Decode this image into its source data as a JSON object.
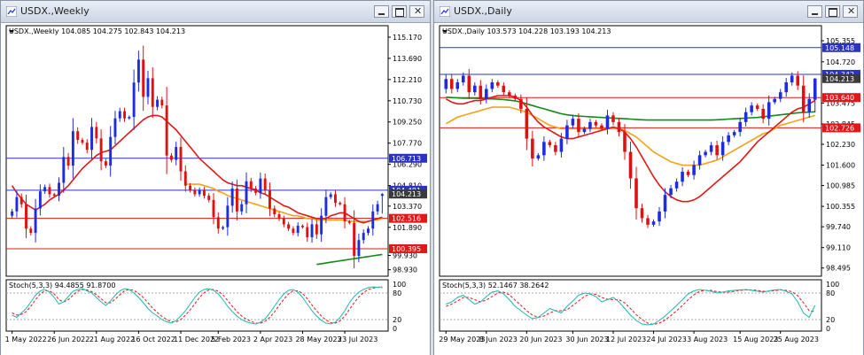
{
  "colors": {
    "bull": "#1c2ce0",
    "bear": "#e01010",
    "ma_red": "#e01818",
    "ma_orange": "#f4a21a",
    "ma_green": "#138a18",
    "stoch_main": "#20b6b0",
    "stoch_signal": "#e01818"
  },
  "windows": [
    {
      "title": "USDX.,Weekly",
      "info": "USDX.,Weekly  104.085 104.275 102.843 104.213",
      "stoch_label": "Stoch(5,3,3) 94.4855 91.8700",
      "yticks": [
        "115.170",
        "113.690",
        "112.210",
        "110.730",
        "109.250",
        "107.770",
        "106.290",
        "104.810",
        "103.370",
        "101.890",
        "99.930",
        "98.930"
      ],
      "stoch_ticks": [
        "100",
        "80",
        "20",
        "0"
      ],
      "xticks": [
        "1 May 2022",
        "26 Jun 2022",
        "21 Aug 2022",
        "16 Oct 2022",
        "11 Dec 2022",
        "5 Feb 2023",
        "2 Apr 2023",
        "28 May 2023",
        "23 Jul 2023"
      ],
      "price_tags": [
        "106.713",
        "104.481",
        "104.213",
        "102.516",
        "100.395"
      ]
    },
    {
      "title": "USDX.,Daily",
      "info": "USDX.,Daily  103.573 104.228 103.193 104.213",
      "stoch_label": "Stoch(5,3,3) 52.1467 38.2642",
      "yticks": [
        "105.355",
        "104.720",
        "103.475",
        "102.845",
        "102.230",
        "101.600",
        "100.985",
        "100.355",
        "99.740",
        "99.110",
        "98.495"
      ],
      "stoch_ticks": [
        "100",
        "80",
        "20",
        "0"
      ],
      "xticks": [
        "29 May 2023",
        "8 Jun 2023",
        "20 Jun 2023",
        "30 Jun 2023",
        "12 Jul 2023",
        "24 Jul 2023",
        "3 Aug 2023",
        "15 Aug 2023",
        "25 Aug 2023"
      ],
      "price_tags": [
        "105.148",
        "104.342",
        "104.213",
        "103.640",
        "102.726"
      ]
    }
  ],
  "chart_data": [
    {
      "type": "candlestick",
      "title": "USDX.,Weekly",
      "ohlc_last": [
        104.085,
        104.275,
        102.843,
        104.213
      ],
      "ylim": [
        98.6,
        115.6
      ],
      "hlines": [
        106.713,
        104.481,
        102.516,
        100.395
      ],
      "close": [
        103.0,
        104.0,
        103.5,
        101.8,
        101.5,
        103.2,
        104.4,
        104.7,
        104.2,
        104.1,
        105.0,
        106.8,
        106.2,
        108.6,
        108.0,
        107.8,
        107.3,
        108.9,
        108.1,
        106.5,
        106.2,
        108.2,
        109.5,
        110.0,
        109.5,
        109.6,
        112.0,
        113.6,
        111.0,
        112.3,
        110.3,
        110.8,
        110.4,
        106.9,
        106.6,
        107.5,
        105.8,
        104.8,
        104.5,
        104.2,
        104.5,
        104.1,
        103.8,
        102.6,
        101.8,
        101.9,
        103.4,
        104.6,
        103.0,
        103.5,
        105.1,
        104.6,
        104.3,
        105.3,
        104.5,
        103.2,
        102.8,
        102.5,
        102.1,
        101.8,
        101.5,
        102.0,
        101.9,
        101.2,
        102.1,
        101.4,
        102.7,
        104.0,
        104.2,
        103.6,
        103.5,
        102.3,
        102.2,
        99.9,
        101.0,
        101.5,
        101.8,
        103.0,
        103.5,
        104.213
      ],
      "ma_red": [
        104.8,
        104.3,
        103.9,
        103.5,
        103.3,
        103.1,
        103.3,
        103.5,
        103.8,
        104.0,
        104.2,
        104.5,
        104.8,
        105.2,
        105.6,
        106.0,
        106.3,
        106.6,
        106.9,
        107.1,
        107.2,
        107.3,
        107.6,
        107.9,
        108.2,
        108.5,
        108.8,
        109.1,
        109.4,
        109.6,
        109.7,
        109.7,
        109.6,
        109.3,
        109.0,
        108.7,
        108.3,
        107.9,
        107.5,
        107.1,
        106.7,
        106.4,
        106.1,
        105.8,
        105.5,
        105.2,
        105.0,
        104.9,
        104.8,
        104.8,
        104.7,
        104.6,
        104.5,
        104.3,
        104.2,
        104.0,
        103.8,
        103.6,
        103.4,
        103.3,
        103.1,
        102.9,
        102.8,
        102.7,
        102.6,
        102.5,
        102.5,
        102.5,
        102.7,
        102.8,
        102.9,
        102.9,
        102.7,
        102.5,
        102.3,
        102.2,
        102.3,
        102.4,
        102.5,
        102.6
      ],
      "ma_orange": [
        null,
        null,
        null,
        null,
        null,
        null,
        null,
        null,
        null,
        null,
        null,
        null,
        null,
        null,
        null,
        null,
        null,
        null,
        null,
        null,
        null,
        null,
        null,
        null,
        null,
        null,
        null,
        null,
        null,
        null,
        null,
        null,
        null,
        null,
        null,
        null,
        null,
        104.9,
        104.9,
        104.9,
        104.9,
        104.8,
        104.7,
        104.6,
        104.4,
        104.3,
        104.1,
        104.0,
        103.9,
        103.8,
        103.7,
        103.6,
        103.5,
        103.4,
        103.3,
        103.2,
        103.1,
        103.0,
        102.9,
        102.8,
        102.7,
        102.7,
        102.6,
        102.5,
        102.5,
        102.4,
        102.4,
        102.4,
        102.4,
        102.4,
        102.4,
        102.4,
        102.3,
        102.3,
        102.3,
        102.3,
        102.3,
        102.4,
        102.4,
        102.5
      ],
      "ma_green": [
        null,
        null,
        null,
        null,
        null,
        null,
        null,
        null,
        null,
        null,
        null,
        null,
        null,
        null,
        null,
        null,
        null,
        null,
        null,
        null,
        null,
        null,
        null,
        null,
        null,
        null,
        null,
        null,
        null,
        null,
        null,
        null,
        null,
        null,
        null,
        null,
        null,
        null,
        null,
        null,
        null,
        null,
        null,
        null,
        null,
        null,
        null,
        null,
        null,
        null,
        null,
        null,
        null,
        null,
        null,
        null,
        null,
        null,
        null,
        null,
        null,
        null,
        null,
        null,
        null,
        99.3,
        99.35,
        99.4,
        99.45,
        99.5,
        99.55,
        99.6,
        99.65,
        99.7,
        99.75,
        99.8,
        99.85,
        99.9,
        99.95,
        100.0
      ],
      "stoch_main": [
        30,
        25,
        35,
        45,
        60,
        75,
        85,
        88,
        82,
        70,
        55,
        60,
        72,
        84,
        88,
        90,
        85,
        80,
        70,
        60,
        52,
        62,
        75,
        85,
        90,
        88,
        80,
        70,
        58,
        45,
        35,
        28,
        20,
        15,
        12,
        18,
        28,
        40,
        55,
        70,
        82,
        88,
        90,
        86,
        78,
        65,
        50,
        38,
        28,
        20,
        15,
        12,
        10,
        14,
        22,
        35,
        50,
        65,
        78,
        86,
        88,
        82,
        70,
        55,
        40,
        28,
        18,
        12,
        10,
        14,
        25,
        40,
        58,
        72,
        82,
        88,
        92,
        94,
        93,
        94
      ],
      "stoch_signal": [
        35,
        30,
        32,
        38,
        50,
        65,
        78,
        85,
        85,
        78,
        65,
        60,
        65,
        75,
        84,
        88,
        87,
        83,
        76,
        67,
        58,
        58,
        66,
        76,
        85,
        88,
        86,
        79,
        70,
        58,
        46,
        36,
        27,
        20,
        15,
        15,
        20,
        30,
        42,
        56,
        70,
        81,
        87,
        88,
        84,
        76,
        63,
        50,
        38,
        28,
        21,
        16,
        12,
        12,
        16,
        25,
        37,
        52,
        66,
        78,
        85,
        85,
        79,
        67,
        53,
        40,
        28,
        19,
        13,
        12,
        17,
        28,
        43,
        58,
        71,
        81,
        88,
        91,
        93,
        91.87
      ]
    },
    {
      "type": "candlestick",
      "title": "USDX.,Daily",
      "ohlc_last": [
        103.573,
        104.228,
        103.193,
        104.213
      ],
      "ylim": [
        98.3,
        105.65
      ],
      "hlines": [
        105.148,
        104.342,
        103.64,
        102.726
      ],
      "close": [
        104.2,
        103.9,
        104.1,
        104.3,
        103.8,
        104.0,
        103.6,
        103.9,
        104.1,
        104.0,
        103.8,
        103.7,
        103.6,
        103.3,
        102.4,
        101.8,
        101.9,
        102.3,
        102.2,
        102.0,
        102.4,
        102.8,
        103.0,
        102.6,
        102.7,
        102.9,
        102.8,
        102.7,
        103.1,
        102.9,
        102.6,
        102.0,
        101.2,
        100.3,
        100.0,
        99.8,
        99.9,
        100.2,
        100.7,
        100.9,
        101.1,
        101.4,
        101.3,
        101.6,
        101.9,
        102.0,
        102.2,
        101.9,
        102.3,
        102.5,
        102.6,
        102.9,
        103.2,
        103.4,
        103.3,
        103.0,
        103.5,
        103.6,
        103.8,
        104.1,
        104.3,
        104.0,
        103.2,
        103.6,
        104.213
      ],
      "ma_red": [
        103.6,
        103.5,
        103.45,
        103.45,
        103.5,
        103.55,
        103.55,
        103.6,
        103.65,
        103.7,
        103.7,
        103.7,
        103.65,
        103.55,
        103.35,
        103.1,
        102.9,
        102.75,
        102.65,
        102.55,
        102.45,
        102.4,
        102.4,
        102.45,
        102.5,
        102.55,
        102.6,
        102.65,
        102.7,
        102.75,
        102.7,
        102.6,
        102.4,
        102.15,
        101.85,
        101.55,
        101.25,
        101.0,
        100.8,
        100.65,
        100.55,
        100.5,
        100.5,
        100.55,
        100.65,
        100.8,
        100.95,
        101.1,
        101.25,
        101.4,
        101.55,
        101.7,
        101.9,
        102.1,
        102.3,
        102.45,
        102.6,
        102.75,
        102.9,
        103.05,
        103.2,
        103.3,
        103.35,
        103.45,
        103.55
      ],
      "ma_orange": [
        102.85,
        102.95,
        103.05,
        103.1,
        103.15,
        103.2,
        103.25,
        103.3,
        103.35,
        103.35,
        103.35,
        103.35,
        103.3,
        103.25,
        103.2,
        103.1,
        103.0,
        102.9,
        102.8,
        102.75,
        102.7,
        102.7,
        102.7,
        102.7,
        102.7,
        102.7,
        102.7,
        102.7,
        102.7,
        102.7,
        102.7,
        102.65,
        102.55,
        102.45,
        102.3,
        102.15,
        102.0,
        101.9,
        101.8,
        101.7,
        101.65,
        101.6,
        101.6,
        101.6,
        101.6,
        101.65,
        101.7,
        101.75,
        101.85,
        101.95,
        102.05,
        102.15,
        102.25,
        102.35,
        102.45,
        102.55,
        102.6,
        102.7,
        102.8,
        102.85,
        102.9,
        102.95,
        103.0,
        103.05,
        103.1
      ],
      "ma_green": [
        103.65,
        103.64,
        103.63,
        103.62,
        103.62,
        103.62,
        103.61,
        103.6,
        103.6,
        103.59,
        103.58,
        103.56,
        103.54,
        103.5,
        103.45,
        103.4,
        103.35,
        103.3,
        103.25,
        103.2,
        103.15,
        103.12,
        103.1,
        103.08,
        103.07,
        103.06,
        103.05,
        103.04,
        103.03,
        103.02,
        103.01,
        103.0,
        102.99,
        102.98,
        102.97,
        102.96,
        102.96,
        102.96,
        102.96,
        102.96,
        102.96,
        102.96,
        102.96,
        102.96,
        102.96,
        102.96,
        102.96,
        102.97,
        102.98,
        102.99,
        103.0,
        103.01,
        103.02,
        103.03,
        103.04,
        103.06,
        103.08,
        103.1,
        103.12,
        103.14,
        103.16,
        103.18,
        103.19,
        103.2,
        103.21
      ],
      "stoch_main": [
        55,
        60,
        70,
        75,
        65,
        55,
        60,
        72,
        82,
        85,
        78,
        65,
        50,
        40,
        30,
        22,
        25,
        35,
        45,
        40,
        35,
        50,
        62,
        75,
        80,
        78,
        72,
        60,
        65,
        70,
        60,
        45,
        30,
        18,
        10,
        8,
        10,
        18,
        28,
        40,
        52,
        65,
        78,
        85,
        88,
        86,
        84,
        80,
        82,
        85,
        86,
        87,
        88,
        86,
        84,
        82,
        85,
        87,
        88,
        84,
        78,
        60,
        35,
        25,
        52.15
      ],
      "stoch_signal": [
        50,
        55,
        62,
        70,
        70,
        65,
        60,
        64,
        72,
        80,
        82,
        76,
        64,
        52,
        40,
        30,
        25,
        28,
        35,
        40,
        40,
        42,
        52,
        62,
        72,
        78,
        77,
        70,
        66,
        65,
        65,
        58,
        45,
        31,
        20,
        12,
        9,
        12,
        19,
        29,
        40,
        52,
        65,
        76,
        84,
        86,
        86,
        83,
        82,
        82,
        84,
        86,
        87,
        87,
        86,
        84,
        84,
        85,
        87,
        86,
        83,
        74,
        58,
        40,
        38.26
      ]
    }
  ]
}
